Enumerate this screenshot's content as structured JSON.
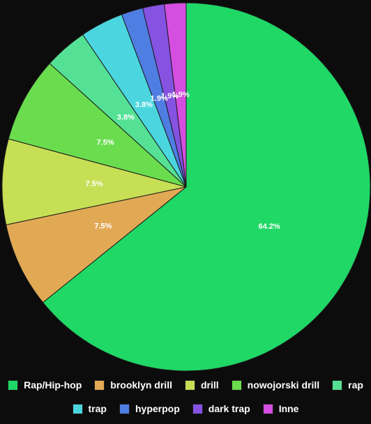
{
  "chart_data": {
    "type": "pie",
    "title": "",
    "legend_position": "bottom",
    "slices": [
      {
        "label": "Rap/Hip-hop",
        "value": 64.2,
        "display": "64.2%",
        "color": "#1fd866"
      },
      {
        "label": "brooklyn drill",
        "value": 7.5,
        "display": "7.5%",
        "color": "#e2a955"
      },
      {
        "label": "drill",
        "value": 7.5,
        "display": "7.5%",
        "color": "#c7df55"
      },
      {
        "label": "nowojorski drill",
        "value": 7.5,
        "display": "7.5%",
        "color": "#6add4e"
      },
      {
        "label": "rap",
        "value": 3.8,
        "display": "3.8%",
        "color": "#55e195"
      },
      {
        "label": "trap",
        "value": 3.8,
        "display": "3.8%",
        "color": "#4bd6df"
      },
      {
        "label": "hyperpop",
        "value": 1.9,
        "display": "1.9%",
        "color": "#4f7ee3"
      },
      {
        "label": "dark trap",
        "value": 1.9,
        "display": "1.9%",
        "color": "#8552e2"
      },
      {
        "label": "Inne",
        "value": 1.9,
        "display": "1.9%",
        "color": "#d44ee0"
      }
    ]
  }
}
